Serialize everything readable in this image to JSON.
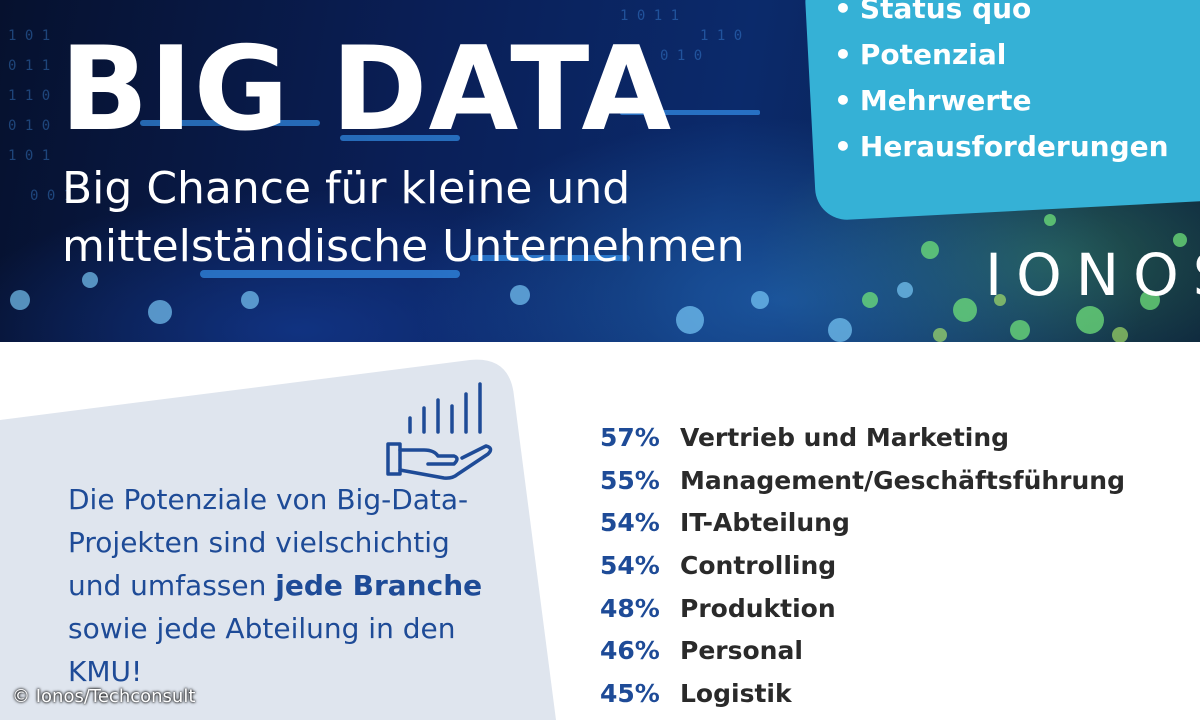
{
  "hero": {
    "title": "BIG DATA",
    "subtitle": "Big Chance für kleine und mittelständische Unternehmen",
    "topics": [
      "Status quo",
      "Potenzial",
      "Mehrwerte",
      "Herausforderungen"
    ],
    "brand": "IONOS"
  },
  "info": {
    "statement_part1": "Die Potenziale von Big-Data-Projekten sind vielschichtig und umfassen ",
    "statement_bold": "jede Branche",
    "statement_part2": " sowie jede Abteilung in den KMU!",
    "icon": "hand-chart-icon"
  },
  "stats": [
    {
      "percent": "57%",
      "label": "Vertrieb und Marketing"
    },
    {
      "percent": "55%",
      "label": "Management/Geschäftsführung"
    },
    {
      "percent": "54%",
      "label": "IT-Abteilung"
    },
    {
      "percent": "54%",
      "label": "Controlling"
    },
    {
      "percent": "48%",
      "label": "Produktion"
    },
    {
      "percent": "46%",
      "label": "Personal"
    },
    {
      "percent": "45%",
      "label": "Logistik"
    }
  ],
  "credit": "© Ionos/Techconsult",
  "colors": {
    "accent_blue": "#1e4b97",
    "topics_box": "#35b1d6",
    "card_bg": "#dfe5ee",
    "hero_dark": "#0a1f57"
  }
}
